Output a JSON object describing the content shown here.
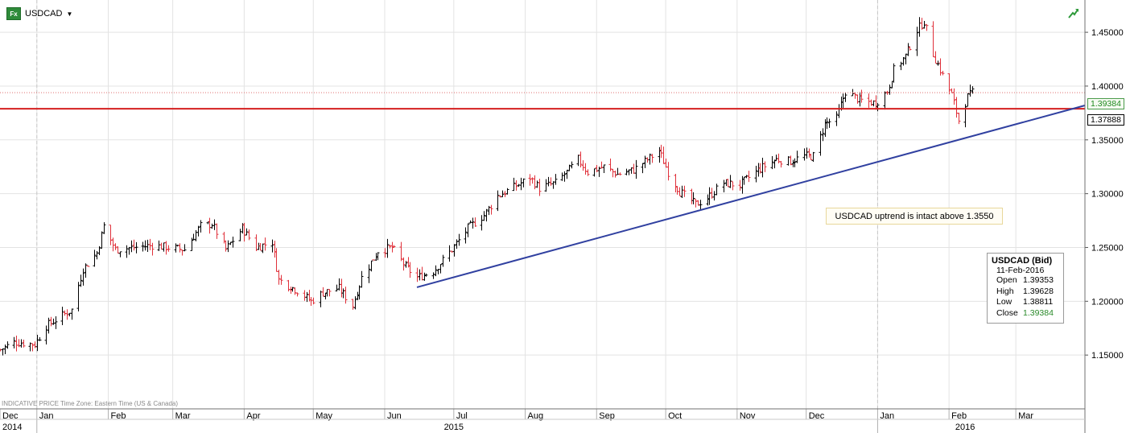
{
  "header": {
    "badge": "Fx",
    "symbol": "USDCAD",
    "dropdown": "▼"
  },
  "footer_note": "INDICATIVE PRICE   Time Zone: Eastern Time (US & Canada)",
  "annotation": "USDCAD uptrend is intact above 1.3550",
  "info_box": {
    "title": "USDCAD (Bid)",
    "date": "11-Feb-2016",
    "rows": [
      {
        "label": "Open",
        "value": "1.39353"
      },
      {
        "label": "High",
        "value": "1.39628"
      },
      {
        "label": "Low",
        "value": "1.38811"
      },
      {
        "label": "Close",
        "value": "1.39384"
      }
    ]
  },
  "price_tags": {
    "close": "1.39384",
    "level": "1.37888"
  },
  "colors": {
    "up_bar": "#000000",
    "down_bar": "#e0303a",
    "trendline": "#3040a0",
    "support_line": "#d41f1f",
    "close_line": "#e07070",
    "grid": "#e3e3e3",
    "close_tag": "#1f8a1f"
  },
  "chart_data": {
    "type": "ohlc",
    "symbol": "USDCAD",
    "ylim": [
      1.1,
      1.48
    ],
    "yticks": [
      "1.15000",
      "1.20000",
      "1.25000",
      "1.30000",
      "1.35000",
      "1.40000",
      "1.45000"
    ],
    "ytick_values": [
      1.15,
      1.2,
      1.25,
      1.3,
      1.35,
      1.4,
      1.45
    ],
    "xlim": [
      "2014-12-16",
      "2016-03-31"
    ],
    "month_ticks": [
      {
        "label": "Dec",
        "date": "2014-12-16"
      },
      {
        "label": "Jan",
        "date": "2015-01-01"
      },
      {
        "label": "Feb",
        "date": "2015-02-01"
      },
      {
        "label": "Mar",
        "date": "2015-03-01"
      },
      {
        "label": "Apr",
        "date": "2015-04-01"
      },
      {
        "label": "May",
        "date": "2015-05-01"
      },
      {
        "label": "Jun",
        "date": "2015-06-01"
      },
      {
        "label": "Jul",
        "date": "2015-07-01"
      },
      {
        "label": "Aug",
        "date": "2015-08-01"
      },
      {
        "label": "Sep",
        "date": "2015-09-01"
      },
      {
        "label": "Oct",
        "date": "2015-10-01"
      },
      {
        "label": "Nov",
        "date": "2015-11-01"
      },
      {
        "label": "Dec",
        "date": "2015-12-01"
      },
      {
        "label": "Jan",
        "date": "2016-01-01"
      },
      {
        "label": "Feb",
        "date": "2016-02-01"
      },
      {
        "label": "Mar",
        "date": "2016-03-01"
      }
    ],
    "year_ticks": [
      {
        "label": "2014",
        "date": "2014-12-16",
        "align": "start"
      },
      {
        "label": "2015",
        "date": "2015-07-01",
        "align": "center"
      },
      {
        "label": "2016",
        "date": "2016-02-08",
        "align": "center"
      }
    ],
    "year_separators": [
      "2015-01-01",
      "2016-01-01"
    ],
    "support_level": 1.37888,
    "last_close": 1.39384,
    "trendline": {
      "start": {
        "date": "2015-06-15",
        "value": 1.213
      },
      "end": {
        "date": "2016-03-31",
        "value": 1.382
      }
    },
    "close_path": [
      [
        "2014-12-16",
        1.155
      ],
      [
        "2014-12-22",
        1.162
      ],
      [
        "2014-12-31",
        1.16
      ],
      [
        "2015-01-05",
        1.177
      ],
      [
        "2015-01-12",
        1.187
      ],
      [
        "2015-01-16",
        1.192
      ],
      [
        "2015-01-21",
        1.23
      ],
      [
        "2015-01-27",
        1.245
      ],
      [
        "2015-01-30",
        1.27
      ],
      [
        "2015-02-04",
        1.248
      ],
      [
        "2015-02-12",
        1.25
      ],
      [
        "2015-02-20",
        1.252
      ],
      [
        "2015-02-27",
        1.25
      ],
      [
        "2015-03-06",
        1.248
      ],
      [
        "2015-03-13",
        1.27
      ],
      [
        "2015-03-18",
        1.272
      ],
      [
        "2015-03-24",
        1.248
      ],
      [
        "2015-03-31",
        1.268
      ],
      [
        "2015-04-06",
        1.25
      ],
      [
        "2015-04-13",
        1.255
      ],
      [
        "2015-04-16",
        1.22
      ],
      [
        "2015-04-24",
        1.21
      ],
      [
        "2015-04-30",
        1.2
      ],
      [
        "2015-05-05",
        1.208
      ],
      [
        "2015-05-12",
        1.212
      ],
      [
        "2015-05-18",
        1.196
      ],
      [
        "2015-05-22",
        1.222
      ],
      [
        "2015-05-29",
        1.247
      ],
      [
        "2015-06-04",
        1.25
      ],
      [
        "2015-06-10",
        1.232
      ],
      [
        "2015-06-15",
        1.222
      ],
      [
        "2015-06-22",
        1.228
      ],
      [
        "2015-06-30",
        1.248
      ],
      [
        "2015-07-07",
        1.268
      ],
      [
        "2015-07-14",
        1.28
      ],
      [
        "2015-07-20",
        1.298
      ],
      [
        "2015-07-27",
        1.306
      ],
      [
        "2015-08-03",
        1.315
      ],
      [
        "2015-08-07",
        1.305
      ],
      [
        "2015-08-14",
        1.31
      ],
      [
        "2015-08-19",
        1.32
      ],
      [
        "2015-08-24",
        1.332
      ],
      [
        "2015-08-28",
        1.32
      ],
      [
        "2015-09-04",
        1.325
      ],
      [
        "2015-09-10",
        1.318
      ],
      [
        "2015-09-17",
        1.322
      ],
      [
        "2015-09-22",
        1.33
      ],
      [
        "2015-09-28",
        1.34
      ],
      [
        "2015-10-02",
        1.32
      ],
      [
        "2015-10-07",
        1.302
      ],
      [
        "2015-10-14",
        1.29
      ],
      [
        "2015-10-19",
        1.296
      ],
      [
        "2015-10-26",
        1.31
      ],
      [
        "2015-11-02",
        1.308
      ],
      [
        "2015-11-10",
        1.322
      ],
      [
        "2015-11-18",
        1.332
      ],
      [
        "2015-11-24",
        1.33
      ],
      [
        "2015-11-30",
        1.335
      ],
      [
        "2015-12-04",
        1.335
      ],
      [
        "2015-12-09",
        1.365
      ],
      [
        "2015-12-14",
        1.37
      ],
      [
        "2015-12-18",
        1.395
      ],
      [
        "2015-12-24",
        1.387
      ],
      [
        "2015-12-31",
        1.384
      ],
      [
        "2016-01-05",
        1.395
      ],
      [
        "2016-01-08",
        1.415
      ],
      [
        "2016-01-13",
        1.428
      ],
      [
        "2016-01-18",
        1.452
      ],
      [
        "2016-01-21",
        1.46
      ],
      [
        "2016-01-25",
        1.43
      ],
      [
        "2016-01-29",
        1.41
      ],
      [
        "2016-02-02",
        1.392
      ],
      [
        "2016-02-05",
        1.368
      ],
      [
        "2016-02-09",
        1.39
      ],
      [
        "2016-02-11",
        1.39384
      ]
    ]
  }
}
